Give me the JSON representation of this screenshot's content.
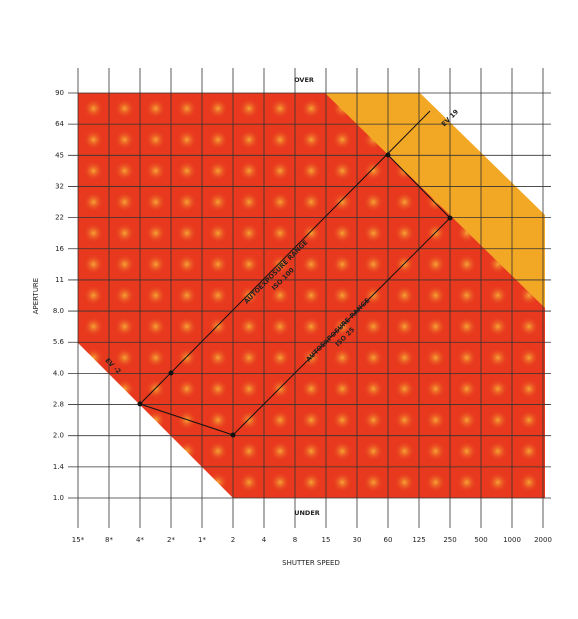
{
  "y_axis": {
    "title": "APERTURE",
    "labels": [
      "90",
      "64",
      "45",
      "32",
      "22",
      "16",
      "11",
      "8.0",
      "5.6",
      "4.0",
      "2.8",
      "2.0",
      "1.4",
      "1.0"
    ]
  },
  "x_axis": {
    "title": "SHUTTER SPEED",
    "labels": [
      "15*",
      "8*",
      "4*",
      "2*",
      "1*",
      "2",
      "4",
      "8",
      "15",
      "30",
      "60",
      "125",
      "250",
      "500",
      "1000",
      "2000"
    ]
  },
  "annotations": {
    "over": "OVER",
    "under": "UNDER",
    "ev_high": "EV 19",
    "ev_low": "EV -2",
    "range_upper": [
      "AUTOEXPOSURE RANGE",
      "ISO 100"
    ],
    "range_lower": [
      "AUTOEXPOSURE RANGE",
      "ISO 25"
    ]
  }
}
